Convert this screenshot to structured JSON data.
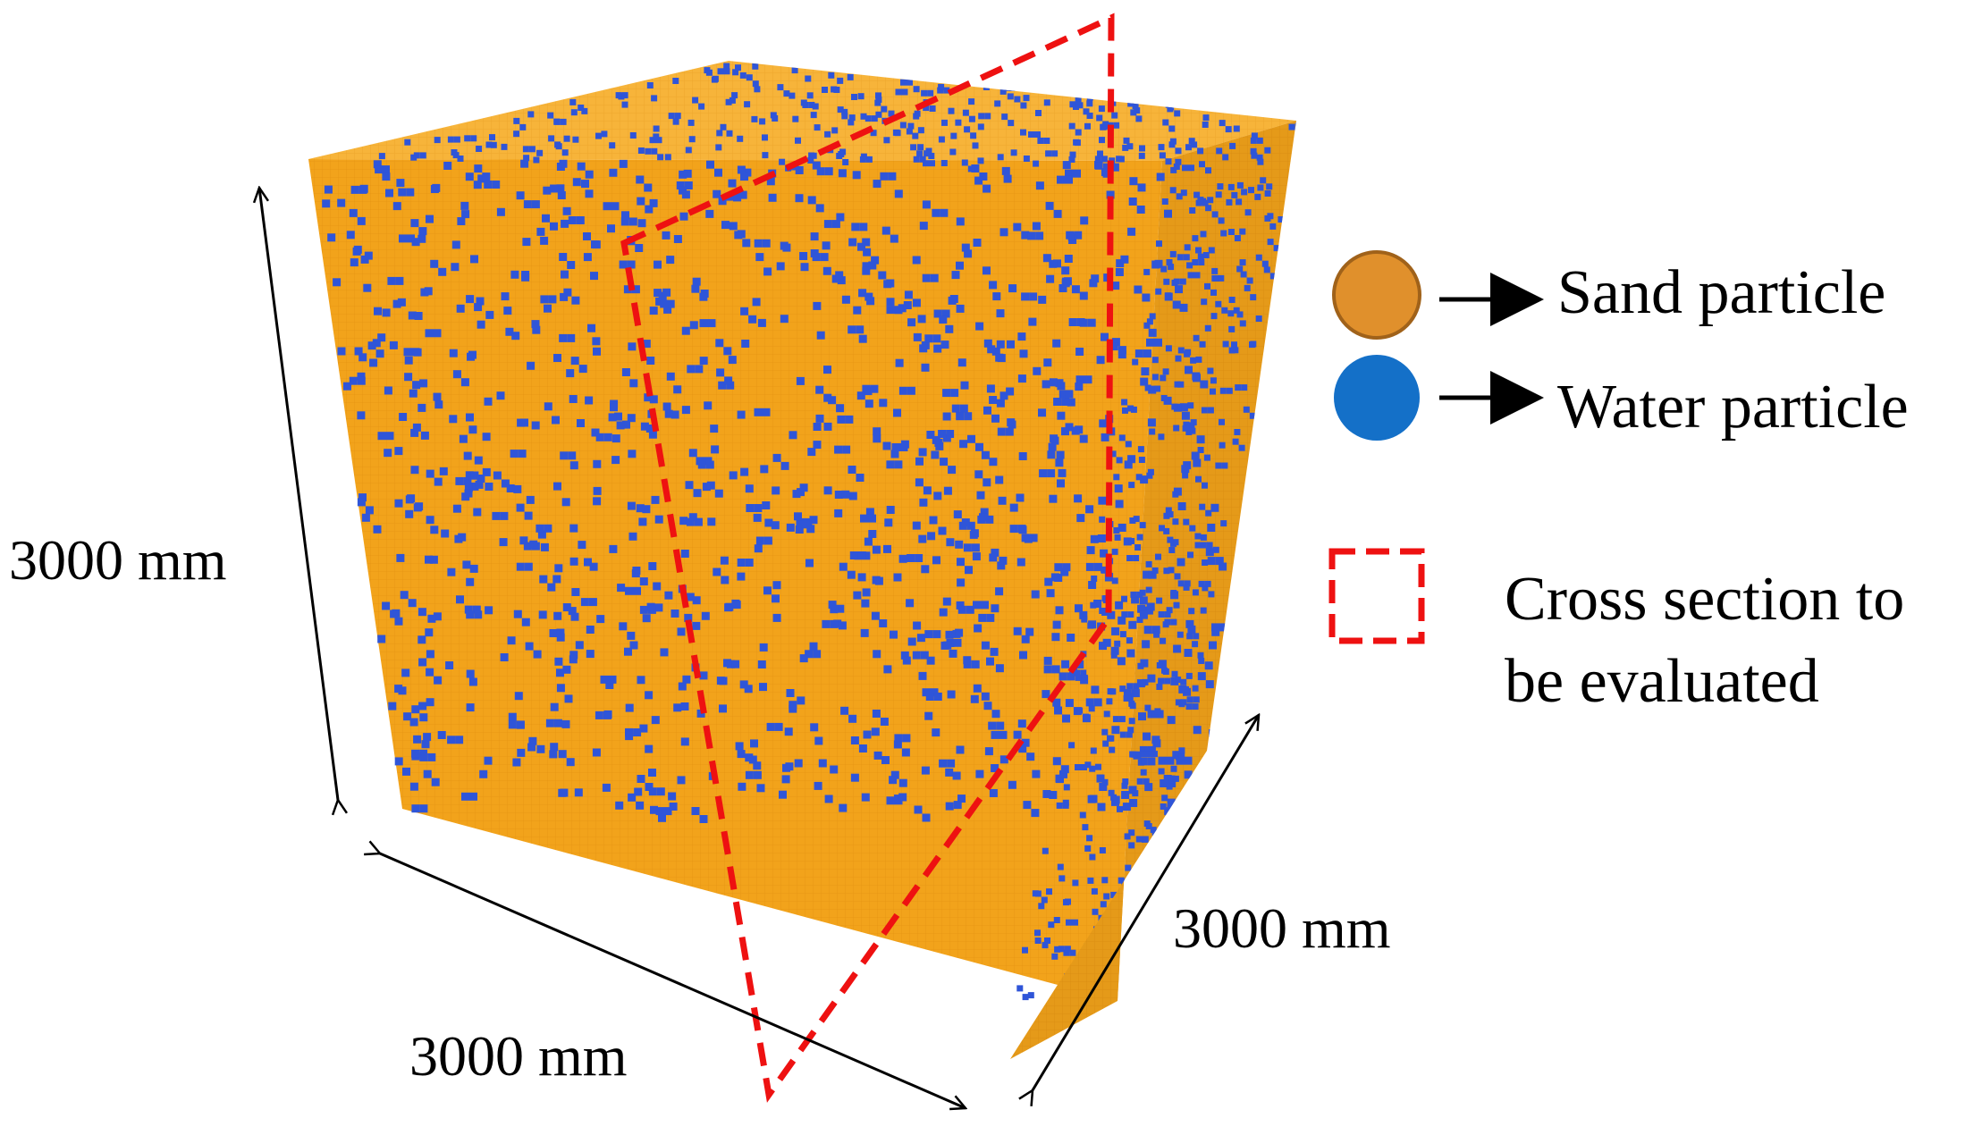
{
  "dimensions": {
    "height_label": "3000 mm",
    "width_label": "3000 mm",
    "depth_label": "3000 mm"
  },
  "legend": {
    "sand": {
      "label": "Sand particle",
      "color": "#e0902c",
      "stroke": "#a0621a"
    },
    "water": {
      "label": "Water particle",
      "color": "#1470c8"
    },
    "cross_section": {
      "label_line1": "Cross section to",
      "label_line2": "be evaluated",
      "color": "#ee1111"
    }
  },
  "cube": {
    "sand_color": "#f2a31b",
    "water_color": "#2f55d8"
  }
}
